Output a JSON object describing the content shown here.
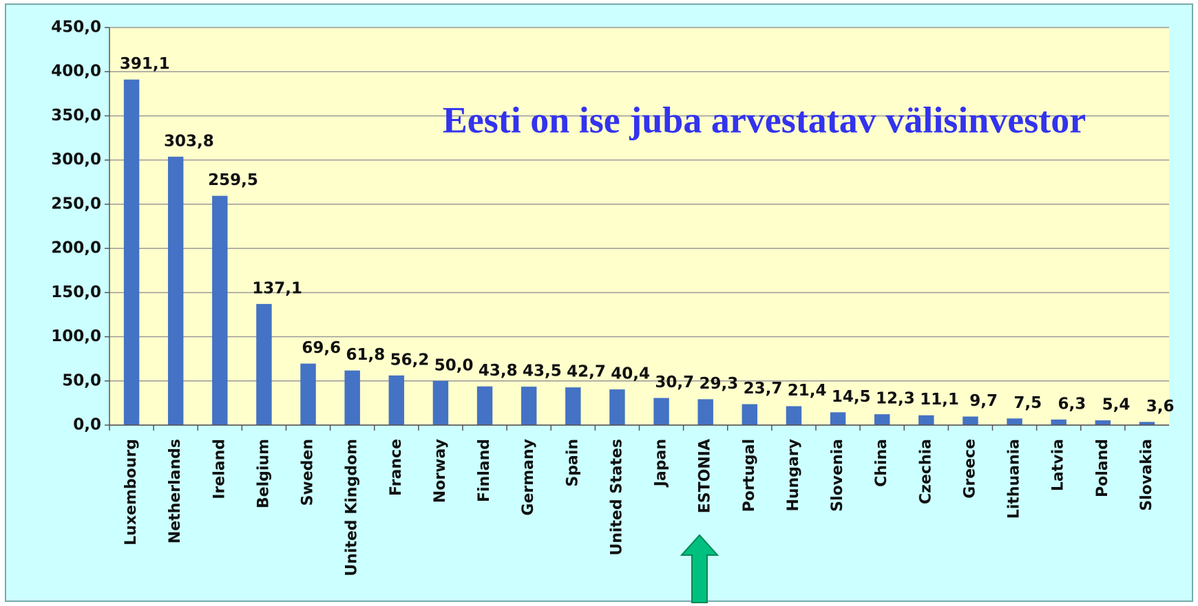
{
  "chart_data": {
    "type": "bar",
    "title": "Eesti on ise juba arvestatav välisinvestor",
    "categories": [
      "Luxembourg",
      "Netherlands",
      "Ireland",
      "Belgium",
      "Sweden",
      "United Kingdom",
      "France",
      "Norway",
      "Finland",
      "Germany",
      "Spain",
      "United States",
      "Japan",
      "ESTONIA",
      "Portugal",
      "Hungary",
      "Slovenia",
      "China",
      "Czechia",
      "Greece",
      "Lithuania",
      "Latvia",
      "Poland",
      "Slovakia"
    ],
    "values": [
      391.1,
      303.8,
      259.5,
      137.1,
      69.6,
      61.8,
      56.2,
      50.0,
      43.8,
      43.5,
      42.7,
      40.4,
      30.7,
      29.3,
      23.7,
      21.4,
      14.5,
      12.3,
      11.1,
      9.7,
      7.5,
      6.3,
      5.4,
      3.6
    ],
    "value_labels": [
      "391,1",
      "303,8",
      "259,5",
      "137,1",
      "69,6",
      "61,8",
      "56,2",
      "50,0",
      "43,8",
      "43,5",
      "42,7",
      "40,4",
      "30,7",
      "29,3",
      "23,7",
      "21,4",
      "14,5",
      "12,3",
      "11,1",
      "9,7",
      "7,5",
      "6,3",
      "5,4",
      "3,6"
    ],
    "color": "#4472c4",
    "ylim": [
      0,
      450
    ],
    "yticks": [
      {
        "value": 0,
        "label": "0,0"
      },
      {
        "value": 50,
        "label": "50,0"
      },
      {
        "value": 100,
        "label": "100,0"
      },
      {
        "value": 150,
        "label": "150,0"
      },
      {
        "value": 200,
        "label": "200,0"
      },
      {
        "value": 250,
        "label": "250,0"
      },
      {
        "value": 300,
        "label": "300,0"
      },
      {
        "value": 350,
        "label": "350,0"
      },
      {
        "value": 400,
        "label": "400,0"
      },
      {
        "value": 450,
        "label": "450,0"
      }
    ],
    "grid": true
  }
}
